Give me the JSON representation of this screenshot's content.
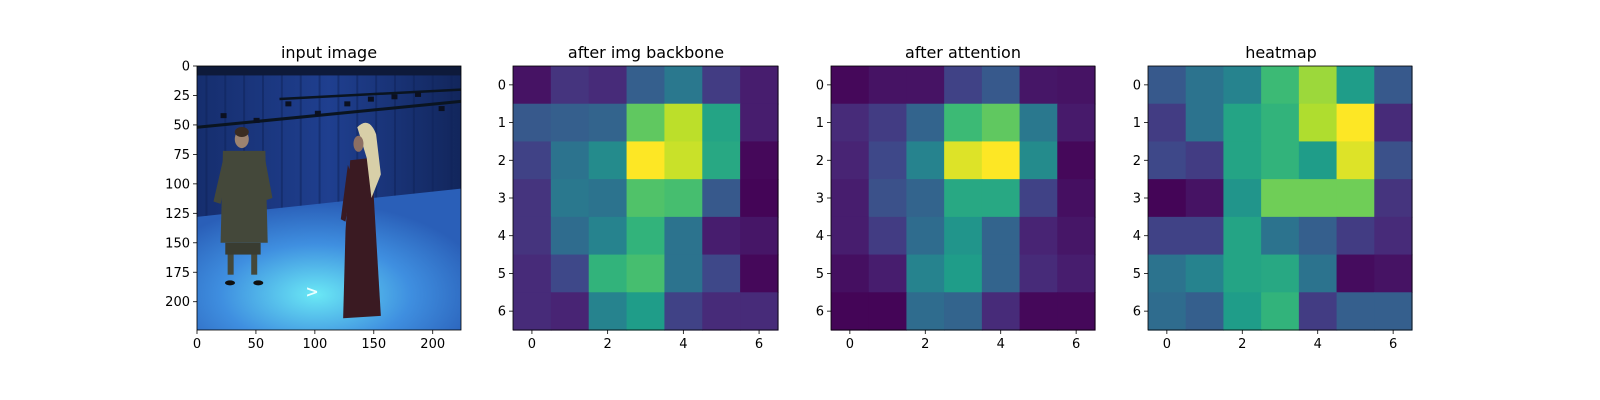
{
  "chart_data": [
    {
      "type": "image",
      "title": "input image",
      "xlim": [
        0,
        224
      ],
      "ylim": [
        224,
        0
      ],
      "xticks": [
        0,
        50,
        100,
        150,
        200
      ],
      "yticks": [
        0,
        25,
        50,
        75,
        100,
        125,
        150,
        175,
        200
      ],
      "annotation": ">",
      "colors": {
        "wall": "#1f3f8f",
        "floor": "#3f8fe0",
        "floor_glow": "#6ae8f5",
        "man_clothes": "#44483a",
        "skin": "#9c8370",
        "woman_dress": "#3a1a22",
        "scarf": "#d8cfa8",
        "rig": "#0a1420"
      }
    },
    {
      "type": "heatmap",
      "title": "after img backbone",
      "xticks": [
        0,
        2,
        4,
        6
      ],
      "yticks": [
        0,
        1,
        2,
        3,
        4,
        5,
        6
      ],
      "values": [
        [
          0.05,
          0.15,
          0.12,
          0.3,
          0.4,
          0.18,
          0.08
        ],
        [
          0.28,
          0.3,
          0.32,
          0.75,
          0.9,
          0.58,
          0.08
        ],
        [
          0.2,
          0.38,
          0.48,
          1.0,
          0.92,
          0.6,
          0.02
        ],
        [
          0.15,
          0.4,
          0.38,
          0.72,
          0.7,
          0.28,
          0.01
        ],
        [
          0.15,
          0.35,
          0.45,
          0.65,
          0.38,
          0.08,
          0.06
        ],
        [
          0.12,
          0.22,
          0.65,
          0.7,
          0.38,
          0.22,
          0.02
        ],
        [
          0.12,
          0.1,
          0.45,
          0.55,
          0.2,
          0.12,
          0.12
        ]
      ]
    },
    {
      "type": "heatmap",
      "title": "after attention",
      "xticks": [
        0,
        2,
        4,
        6
      ],
      "yticks": [
        0,
        1,
        2,
        3,
        4,
        5,
        6
      ],
      "values": [
        [
          0.02,
          0.05,
          0.05,
          0.2,
          0.28,
          0.06,
          0.05
        ],
        [
          0.12,
          0.18,
          0.32,
          0.68,
          0.75,
          0.4,
          0.07
        ],
        [
          0.1,
          0.22,
          0.45,
          0.95,
          1.0,
          0.48,
          0.02
        ],
        [
          0.08,
          0.25,
          0.32,
          0.6,
          0.6,
          0.2,
          0.04
        ],
        [
          0.08,
          0.18,
          0.35,
          0.52,
          0.32,
          0.1,
          0.06
        ],
        [
          0.04,
          0.08,
          0.45,
          0.55,
          0.32,
          0.12,
          0.08
        ],
        [
          0.01,
          0.01,
          0.35,
          0.32,
          0.12,
          0.02,
          0.02
        ]
      ]
    },
    {
      "type": "heatmap",
      "title": "heatmap",
      "xticks": [
        0,
        2,
        4,
        6
      ],
      "yticks": [
        0,
        1,
        2,
        3,
        4,
        5,
        6
      ],
      "values": [
        [
          0.28,
          0.38,
          0.45,
          0.68,
          0.85,
          0.55,
          0.28
        ],
        [
          0.18,
          0.38,
          0.58,
          0.65,
          0.88,
          1.0,
          0.12
        ],
        [
          0.22,
          0.18,
          0.58,
          0.65,
          0.55,
          0.95,
          0.25
        ],
        [
          0.01,
          0.05,
          0.52,
          0.78,
          0.78,
          0.78,
          0.15
        ],
        [
          0.2,
          0.2,
          0.58,
          0.38,
          0.3,
          0.18,
          0.12
        ],
        [
          0.38,
          0.45,
          0.58,
          0.6,
          0.38,
          0.03,
          0.05
        ],
        [
          0.35,
          0.3,
          0.55,
          0.65,
          0.18,
          0.3,
          0.3
        ]
      ]
    }
  ]
}
